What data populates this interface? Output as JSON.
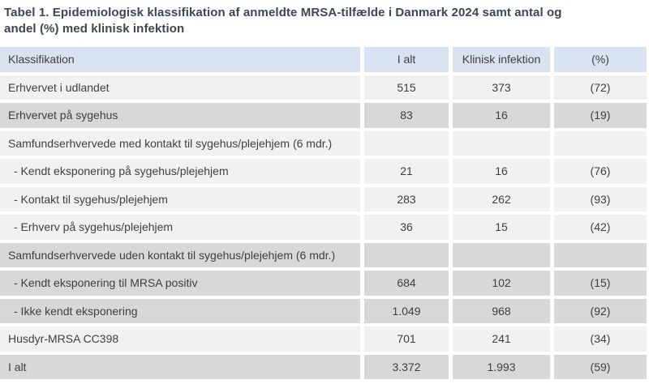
{
  "title": {
    "line1": "Tabel 1. Epidemiologisk klassifikation af anmeldte MRSA-tilfælde i Danmark 2024 samt antal og",
    "line2": "andel (%) med klinisk infektion"
  },
  "table": {
    "columns": [
      "Klassifikation",
      "I alt",
      "Klinisk infektion",
      "(%)"
    ],
    "rows": [
      {
        "label": "Erhvervet i udlandet",
        "total": "515",
        "infection": "373",
        "pct": "(72)"
      },
      {
        "label": "Erhvervet på sygehus",
        "total": "83",
        "infection": "16",
        "pct": "(19)"
      },
      {
        "label": "Samfundserhvervede med kontakt til sygehus/plejehjem (6 mdr.)",
        "total": "",
        "infection": "",
        "pct": ""
      },
      {
        "label": "- Kendt eksponering på sygehus/plejehjem",
        "total": "21",
        "infection": "16",
        "pct": "(76)"
      },
      {
        "label": "- Kontakt til sygehus/plejehjem",
        "total": "283",
        "infection": "262",
        "pct": "(93)"
      },
      {
        "label": "- Erhverv på sygehus/plejehjem",
        "total": "36",
        "infection": "15",
        "pct": "(42)"
      },
      {
        "label": "Samfundserhvervede uden kontakt til sygehus/plejehjem (6 mdr.)",
        "total": "",
        "infection": "",
        "pct": ""
      },
      {
        "label": "- Kendt eksponering til MRSA positiv",
        "total": "684",
        "infection": "102",
        "pct": "(15)"
      },
      {
        "label": "- Ikke kendt eksponering",
        "total": "1.049",
        "infection": "968",
        "pct": "(92)"
      },
      {
        "label": "Husdyr-MRSA CC398",
        "total": "701",
        "infection": "241",
        "pct": "(34)"
      },
      {
        "label": "I alt",
        "total": "3.372",
        "infection": "1.993",
        "pct": "(59)"
      }
    ]
  },
  "colors": {
    "header_row_bg": "#d9e2f1",
    "row_light_bg": "#f1f1f1",
    "row_dark_bg": "#d8d8d8",
    "title_text": "#3e4653",
    "body_text": "#3f3f3f"
  }
}
